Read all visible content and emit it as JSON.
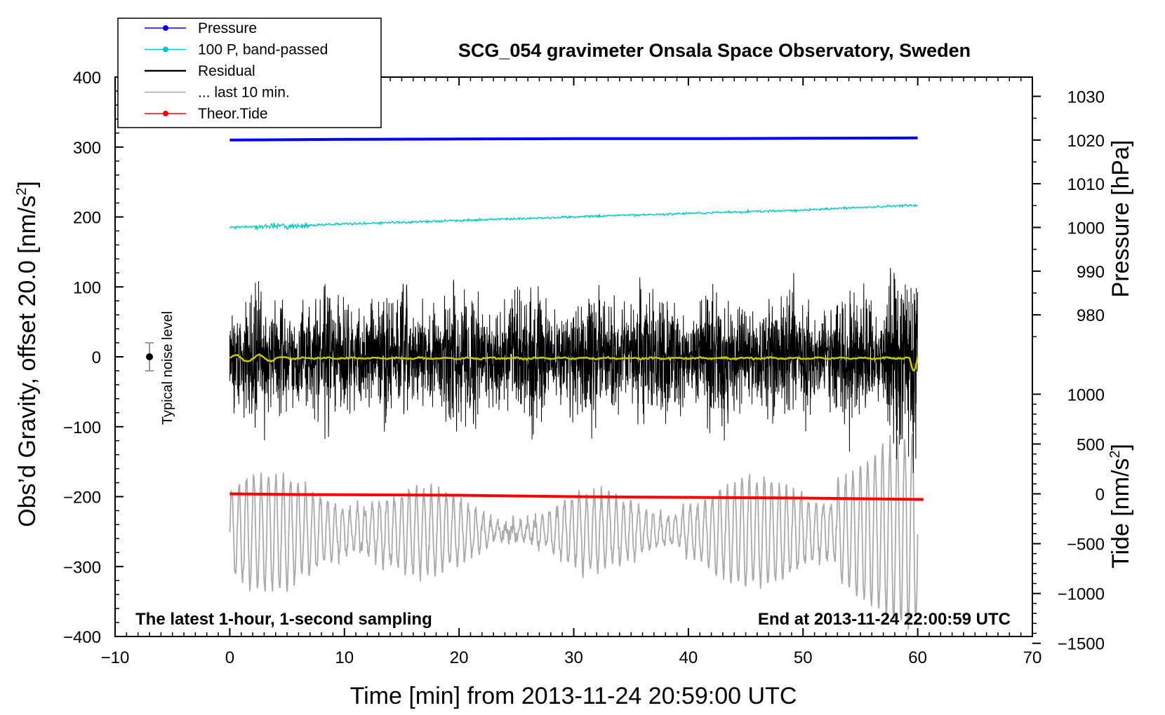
{
  "chart_data": {
    "type": "line",
    "title": "SCG_054 gravimeter Onsala Space Observatory, Sweden",
    "xlabel": "Time [min] from 2013-11-24 20:59:00 UTC",
    "ylabel_left_text": "Obs’d Gravity, offset 20.0 [nm/s",
    "ylabel_left_sup": "2",
    "ylabel_left_close": "]",
    "ylabel_right_pressure": "Pressure [hPa]",
    "ylabel_right_tide_text": "Tide [nm/s",
    "ylabel_right_tide_sup": "2",
    "ylabel_right_tide_close": "]",
    "xlim": [
      -10,
      70
    ],
    "ylim": [
      -400,
      400
    ],
    "pressure_axis_range_hpa": [
      960,
      1035
    ],
    "tide_axis_range_nms2": [
      -1500,
      1500
    ],
    "x_ticks": [
      "−10",
      "0",
      "10",
      "20",
      "30",
      "40",
      "50",
      "60",
      "70"
    ],
    "y_ticks": [
      "400",
      "300",
      "200",
      "100",
      "0",
      "−100",
      "−200",
      "−300",
      "−400"
    ],
    "pressure_ticks": [
      "1030",
      "1020",
      "1010",
      "1000",
      "990",
      "980"
    ],
    "tide_ticks": [
      "1000",
      "500",
      "0",
      "−500",
      "−1000",
      "−1500"
    ],
    "note_left": "The latest 1-hour, 1-second sampling",
    "note_right": "End at 2013-11-24 22:00:59 UTC",
    "noise_label": "Typical noise level",
    "noise_bar": {
      "x": -7,
      "center": 0,
      "half_range": 20
    },
    "legend": [
      {
        "label": "Pressure",
        "color": "#0000ff",
        "marker": true
      },
      {
        "label": "100 P, band-passed",
        "color": "#00c8c8",
        "marker": true
      },
      {
        "label": "Residual",
        "color": "#000000",
        "marker": false
      },
      {
        "label": "... last 10 min.",
        "color": "#aaaaaa",
        "marker": false
      },
      {
        "label": "Theor.Tide",
        "color": "#ff0000",
        "marker": true
      }
    ],
    "series": [
      {
        "name": "Pressure",
        "color": "#0000ff",
        "x": [
          0,
          10,
          20,
          30,
          40,
          50,
          60
        ],
        "y": [
          310,
          311,
          311.5,
          312,
          312,
          312.5,
          313
        ]
      },
      {
        "name": "100 P, band-passed",
        "color": "#00c8c8",
        "x": [
          0,
          5,
          10,
          20,
          30,
          40,
          50,
          60
        ],
        "y": [
          185,
          187,
          190,
          195,
          200,
          205,
          210,
          217
        ]
      },
      {
        "name": "Residual",
        "color": "#000000",
        "x_range": [
          0,
          60
        ],
        "typical_amplitude": 60,
        "max_excursion": 175
      },
      {
        "name": "Residual (filtered)",
        "color": "#c8c800",
        "x": [
          0,
          60
        ],
        "y": [
          0,
          0
        ],
        "end_dip": -20
      },
      {
        "name": "... last 10 min.",
        "color": "#aaaaaa",
        "x_range": [
          0,
          60
        ],
        "center": -250,
        "typical_amplitude": 60,
        "max_excursion": 190
      },
      {
        "name": "Theor.Tide",
        "color": "#ff0000",
        "x": [
          0,
          6,
          20,
          30,
          40,
          50,
          60.5
        ],
        "y": [
          -196,
          -197,
          -198,
          -200,
          -201,
          -202,
          -204
        ]
      }
    ]
  }
}
